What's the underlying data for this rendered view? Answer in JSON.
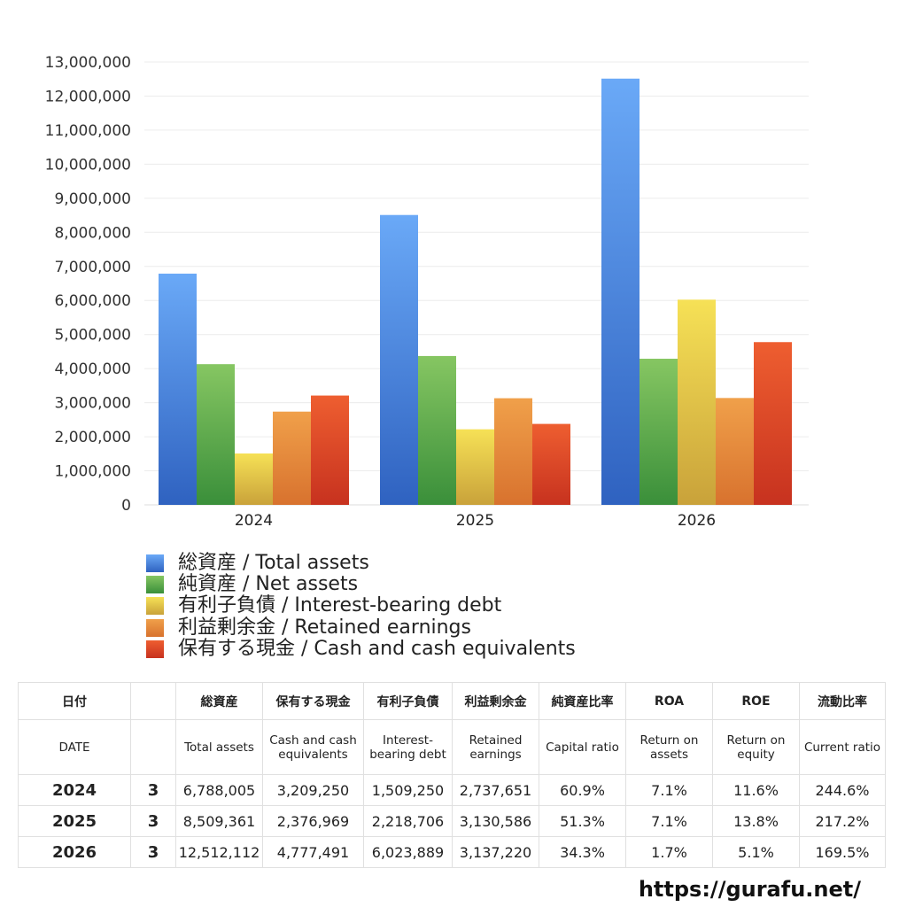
{
  "chart_data": {
    "type": "bar",
    "categories": [
      "2024",
      "2025",
      "2026"
    ],
    "series": [
      {
        "name": "総資産 / Total assets",
        "values": [
          6788005,
          8509361,
          12512112
        ],
        "color_top": "#6aa9f7",
        "color_bottom": "#2f62c0"
      },
      {
        "name": "純資産 / Net assets",
        "values": [
          4130000,
          4370000,
          4290000
        ],
        "color_top": "#86c662",
        "color_bottom": "#3a8f3a"
      },
      {
        "name": "有利子負債 / Interest-bearing debt",
        "values": [
          1509250,
          2218706,
          6023889
        ],
        "color_top": "#f6e156",
        "color_bottom": "#c9a23a"
      },
      {
        "name": "利益剰余金 / Retained earnings",
        "values": [
          2737651,
          3130586,
          3137220
        ],
        "color_top": "#f0a04a",
        "color_bottom": "#d8722e"
      },
      {
        "name": "保有する現金 /  Cash and cash equivalents",
        "values": [
          3209250,
          2376969,
          4777491
        ],
        "color_top": "#ee5e30",
        "color_bottom": "#c7321f"
      }
    ],
    "ylim": [
      0,
      13000000
    ],
    "yticks": [
      "0",
      "1,000,000",
      "2,000,000",
      "3,000,000",
      "4,000,000",
      "5,000,000",
      "6,000,000",
      "7,000,000",
      "8,000,000",
      "9,000,000",
      "10,000,000",
      "11,000,000",
      "12,000,000",
      "13,000,000"
    ],
    "grid": true,
    "legend_placement": "bottom"
  },
  "table": {
    "header_ja": [
      "日付",
      "",
      "総資産",
      "保有する現金",
      "有利子負債",
      "利益剰余金",
      "純資産比率",
      "ROA",
      "ROE",
      "流動比率"
    ],
    "header_en": [
      "DATE",
      "",
      "Total assets",
      "Cash and cash equivalents",
      "Interest-bearing debt",
      "Retained earnings",
      "Capital ratio",
      "Return on assets",
      "Return on equity",
      "Current ratio"
    ],
    "rows": [
      [
        "2024",
        "3",
        "6,788,005",
        "3,209,250",
        "1,509,250",
        "2,737,651",
        "60.9%",
        "7.1%",
        "11.6%",
        "244.6%"
      ],
      [
        "2025",
        "3",
        "8,509,361",
        "2,376,969",
        "2,218,706",
        "3,130,586",
        "51.3%",
        "7.1%",
        "13.8%",
        "217.2%"
      ],
      [
        "2026",
        "3",
        "12,512,112",
        "4,777,491",
        "6,023,889",
        "3,137,220",
        "34.3%",
        "1.7%",
        "5.1%",
        "169.5%"
      ]
    ]
  },
  "footer": {
    "url": "https://gurafu.net/"
  }
}
